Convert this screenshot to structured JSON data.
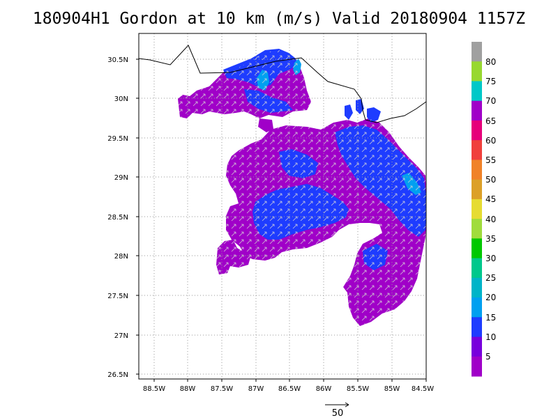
{
  "title": "180904H1 Gordon at 10 km (m/s) Valid 20180904 1157Z",
  "map": {
    "lat_ticks": [
      "30.5N",
      "30N",
      "29.5N",
      "29N",
      "28.5N",
      "28N",
      "27.5N",
      "27N",
      "26.5N"
    ],
    "lon_ticks": [
      "88.5W",
      "88W",
      "87.5W",
      "87W",
      "86.5W",
      "86W",
      "85.5W",
      "85W",
      "84.5W"
    ],
    "lat_range": [
      26.5,
      30.7
    ],
    "lon_range": [
      -88.85,
      -84.5
    ],
    "grid": "dotted",
    "coastline_color": "#000000"
  },
  "colorbar": {
    "labels": [
      "80",
      "75",
      "70",
      "65",
      "60",
      "55",
      "50",
      "45",
      "40",
      "35",
      "30",
      "25",
      "20",
      "15",
      "10",
      "5"
    ],
    "colors": [
      "#a0a0a0",
      "#98d830",
      "#00c8c8",
      "#a000c8",
      "#e6007a",
      "#f0403c",
      "#f08228",
      "#dca028",
      "#e6dc32",
      "#a0dc3c",
      "#00c800",
      "#00c88c",
      "#00b4c8",
      "#00a0f0",
      "#1e3cff",
      "#7800dc",
      "#a000c8"
    ]
  },
  "reference_vector": {
    "label": "50",
    "units": "m/s"
  }
}
